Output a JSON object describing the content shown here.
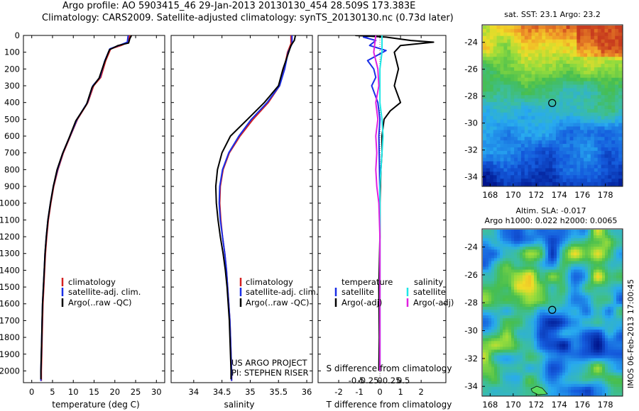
{
  "header": {
    "line1": "Argo profile: AO 5903415_46 29-Jan-2013 20130130_454 28.509S 173.383E",
    "line2": "Climatology: CARS2009. Satellite-adjusted climatology: synTS_20130130.nc (0.73d later)"
  },
  "side_text": "IMOS 06-Feb-2013 17:00:45",
  "colors": {
    "climatology": "#d42020",
    "satellite": "#1a2ee6",
    "argo": "#000000",
    "sal_satellite": "#1ee6e6",
    "sal_argo": "#e020e0"
  },
  "depth_axis": {
    "range": [
      0,
      2070
    ],
    "ticks": [
      "0",
      "100",
      "200",
      "300",
      "400",
      "500",
      "600",
      "700",
      "800",
      "900",
      "1000",
      "1100",
      "1200",
      "1300",
      "1400",
      "1500",
      "1600",
      "1700",
      "1800",
      "1900",
      "2000"
    ]
  },
  "chart_data": [
    {
      "type": "line",
      "xlabel": "temperature (deg C)",
      "xlim": [
        -2,
        32
      ],
      "xticks": [
        "0",
        "5",
        "10",
        "15",
        "20",
        "25",
        "30"
      ],
      "legend": [
        "climatology",
        "satellite-adj. clim.",
        "Argo(..raw -QC)"
      ],
      "series": [
        {
          "name": "climatology",
          "color_key": "climatology",
          "points": [
            [
              23.6,
              0
            ],
            [
              23.2,
              40
            ],
            [
              21.5,
              60
            ],
            [
              19.0,
              80
            ],
            [
              17.8,
              150
            ],
            [
              16.6,
              250
            ],
            [
              14.9,
              300
            ],
            [
              13.5,
              400
            ],
            [
              11.0,
              500
            ],
            [
              9.3,
              600
            ],
            [
              7.6,
              700
            ],
            [
              6.3,
              800
            ],
            [
              5.3,
              900
            ],
            [
              4.6,
              1000
            ],
            [
              4.0,
              1100
            ],
            [
              3.6,
              1200
            ],
            [
              3.3,
              1300
            ],
            [
              3.1,
              1400
            ],
            [
              2.9,
              1500
            ],
            [
              2.7,
              1600
            ],
            [
              2.6,
              1700
            ],
            [
              2.5,
              1800
            ],
            [
              2.4,
              1900
            ],
            [
              2.3,
              2000
            ],
            [
              2.3,
              2060
            ]
          ]
        },
        {
          "name": "satellite-adj. clim.",
          "color_key": "satellite",
          "points": [
            [
              23.2,
              0
            ],
            [
              23.0,
              40
            ],
            [
              21.0,
              60
            ],
            [
              18.8,
              80
            ],
            [
              17.6,
              150
            ],
            [
              16.4,
              250
            ],
            [
              14.7,
              300
            ],
            [
              13.4,
              400
            ],
            [
              10.9,
              500
            ],
            [
              9.2,
              600
            ],
            [
              7.5,
              700
            ],
            [
              6.2,
              800
            ],
            [
              5.2,
              900
            ],
            [
              4.5,
              1000
            ],
            [
              3.9,
              1100
            ],
            [
              3.5,
              1200
            ],
            [
              3.2,
              1300
            ],
            [
              3.0,
              1400
            ],
            [
              2.8,
              1500
            ],
            [
              2.6,
              1600
            ],
            [
              2.5,
              1700
            ],
            [
              2.4,
              1800
            ],
            [
              2.3,
              1900
            ],
            [
              2.2,
              2000
            ],
            [
              2.2,
              2060
            ]
          ]
        },
        {
          "name": "Argo(..raw -QC)",
          "color_key": "argo",
          "points": [
            [
              24.0,
              0
            ],
            [
              23.6,
              20
            ],
            [
              23.3,
              45
            ],
            [
              20.8,
              60
            ],
            [
              18.7,
              85
            ],
            [
              17.5,
              160
            ],
            [
              16.2,
              255
            ],
            [
              14.5,
              310
            ],
            [
              13.2,
              410
            ],
            [
              10.6,
              510
            ],
            [
              9.0,
              610
            ],
            [
              7.4,
              705
            ],
            [
              6.1,
              800
            ],
            [
              5.2,
              900
            ],
            [
              4.5,
              1000
            ],
            [
              3.9,
              1100
            ],
            [
              3.5,
              1200
            ],
            [
              3.2,
              1300
            ],
            [
              3.0,
              1400
            ],
            [
              2.8,
              1500
            ],
            [
              2.6,
              1600
            ],
            [
              2.5,
              1700
            ],
            [
              2.4,
              1800
            ],
            [
              2.3,
              1900
            ],
            [
              2.2,
              2000
            ],
            [
              2.2,
              2050
            ]
          ]
        }
      ]
    },
    {
      "type": "line",
      "xlabel": "salinity",
      "xlim": [
        33.6,
        36.1
      ],
      "xticks": [
        "34",
        "34.5",
        "35",
        "35.5",
        "36"
      ],
      "legend": [
        "climatology",
        "satellite-adj. clim.",
        "Argo(..raw -QC)"
      ],
      "series": [
        {
          "name": "climatology",
          "color_key": "climatology",
          "points": [
            [
              35.72,
              0
            ],
            [
              35.72,
              50
            ],
            [
              35.66,
              100
            ],
            [
              35.6,
              200
            ],
            [
              35.52,
              300
            ],
            [
              35.32,
              400
            ],
            [
              35.05,
              500
            ],
            [
              34.82,
              600
            ],
            [
              34.63,
              700
            ],
            [
              34.52,
              800
            ],
            [
              34.47,
              900
            ],
            [
              34.46,
              1000
            ],
            [
              34.48,
              1100
            ],
            [
              34.51,
              1200
            ],
            [
              34.55,
              1300
            ],
            [
              34.58,
              1400
            ],
            [
              34.6,
              1500
            ],
            [
              34.62,
              1600
            ],
            [
              34.64,
              1700
            ],
            [
              34.65,
              1800
            ],
            [
              34.66,
              1900
            ],
            [
              34.67,
              2000
            ],
            [
              34.67,
              2060
            ]
          ]
        },
        {
          "name": "satellite-adj. clim.",
          "color_key": "satellite",
          "points": [
            [
              35.74,
              0
            ],
            [
              35.74,
              50
            ],
            [
              35.67,
              100
            ],
            [
              35.61,
              200
            ],
            [
              35.52,
              300
            ],
            [
              35.3,
              400
            ],
            [
              35.02,
              500
            ],
            [
              34.8,
              600
            ],
            [
              34.62,
              700
            ],
            [
              34.51,
              800
            ],
            [
              34.46,
              900
            ],
            [
              34.45,
              1000
            ],
            [
              34.47,
              1100
            ],
            [
              34.51,
              1200
            ],
            [
              34.55,
              1300
            ],
            [
              34.58,
              1400
            ],
            [
              34.6,
              1500
            ],
            [
              34.62,
              1600
            ],
            [
              34.64,
              1700
            ],
            [
              34.65,
              1800
            ],
            [
              34.66,
              1900
            ],
            [
              34.67,
              2000
            ],
            [
              34.67,
              2060
            ]
          ]
        },
        {
          "name": "Argo(..raw -QC)",
          "color_key": "argo",
          "points": [
            [
              35.8,
              0
            ],
            [
              35.78,
              30
            ],
            [
              35.72,
              60
            ],
            [
              35.68,
              100
            ],
            [
              35.58,
              200
            ],
            [
              35.5,
              300
            ],
            [
              35.25,
              400
            ],
            [
              34.95,
              500
            ],
            [
              34.65,
              600
            ],
            [
              34.5,
              700
            ],
            [
              34.42,
              800
            ],
            [
              34.39,
              900
            ],
            [
              34.4,
              1000
            ],
            [
              34.43,
              1100
            ],
            [
              34.47,
              1200
            ],
            [
              34.52,
              1300
            ],
            [
              34.56,
              1400
            ],
            [
              34.59,
              1500
            ],
            [
              34.61,
              1600
            ],
            [
              34.63,
              1700
            ],
            [
              34.64,
              1800
            ],
            [
              34.65,
              1900
            ],
            [
              34.66,
              2000
            ],
            [
              34.66,
              2050
            ]
          ]
        }
      ]
    },
    {
      "type": "line",
      "xlabel": "T difference from climatology",
      "xlabel_top": "S difference from climatology",
      "xlim": [
        -3,
        3.2
      ],
      "xticks": [
        "-2",
        "-1",
        "0",
        "1",
        "2"
      ],
      "xticks_top": [
        "-0.5",
        "-0.25",
        "0",
        "0.25",
        "0.5"
      ],
      "legend_temperature_title": "temperature",
      "legend_salinity_title": "salinity",
      "legend_temperature": [
        "satellite",
        "Argo(-adj)"
      ],
      "legend_salinity": [
        "satellite",
        "Argo(-adj)"
      ],
      "series": [
        {
          "name": "satellite",
          "color_key": "satellite",
          "points": [
            [
              -0.3,
              0
            ],
            [
              -0.8,
              10
            ],
            [
              -0.2,
              30
            ],
            [
              -0.5,
              60
            ],
            [
              0.3,
              90
            ],
            [
              -0.6,
              150
            ],
            [
              -0.3,
              200
            ],
            [
              -0.2,
              250
            ],
            [
              -0.4,
              300
            ],
            [
              -0.1,
              400
            ],
            [
              0.0,
              500
            ],
            [
              -0.05,
              600
            ],
            [
              -0.02,
              800
            ],
            [
              0.0,
              1000
            ],
            [
              0.0,
              1500
            ],
            [
              0.0,
              2000
            ]
          ]
        },
        {
          "name": "Argo(-adj)",
          "color_key": "argo",
          "points": [
            [
              -1.2,
              0
            ],
            [
              0.3,
              10
            ],
            [
              1.5,
              30
            ],
            [
              2.6,
              40
            ],
            [
              1.0,
              60
            ],
            [
              0.7,
              100
            ],
            [
              0.9,
              200
            ],
            [
              0.7,
              300
            ],
            [
              1.0,
              400
            ],
            [
              0.5,
              450
            ],
            [
              0.2,
              500
            ],
            [
              0.1,
              600
            ],
            [
              0.1,
              700
            ],
            [
              0.05,
              800
            ],
            [
              0.0,
              1000
            ],
            [
              0.0,
              1200
            ],
            [
              -0.05,
              1500
            ],
            [
              -0.03,
              1800
            ],
            [
              -0.05,
              2000
            ]
          ]
        },
        {
          "name": "satellite",
          "color_key": "sal_satellite",
          "points": [
            [
              0.1,
              0
            ],
            [
              0.1,
              100
            ],
            [
              0.0,
              200
            ],
            [
              0.0,
              400
            ],
            [
              0.1,
              500
            ],
            [
              0.15,
              600
            ],
            [
              0.1,
              700
            ],
            [
              0.05,
              800
            ],
            [
              0.0,
              900
            ],
            [
              0.0,
              1000
            ],
            [
              0.0,
              1500
            ],
            [
              0.0,
              2000
            ]
          ]
        },
        {
          "name": "Argo(-adj)",
          "color_key": "sal_argo",
          "points": [
            [
              -0.2,
              0
            ],
            [
              -0.3,
              100
            ],
            [
              -0.1,
              200
            ],
            [
              -0.05,
              300
            ],
            [
              -0.2,
              400
            ],
            [
              -0.1,
              500
            ],
            [
              -0.2,
              600
            ],
            [
              -0.15,
              700
            ],
            [
              -0.2,
              800
            ],
            [
              -0.15,
              900
            ],
            [
              -0.05,
              1000
            ],
            [
              0.0,
              1200
            ],
            [
              0.0,
              1500
            ],
            [
              0.0,
              2000
            ]
          ]
        }
      ]
    },
    {
      "type": "heatmap",
      "title": "sat. SST: 23.1  Argo: 23.2",
      "xlim": [
        167.3,
        179.5
      ],
      "ylim": [
        -34.7,
        -22.7
      ],
      "xticks": [
        "168",
        "170",
        "172",
        "174",
        "176",
        "178"
      ],
      "yticks": [
        "-24",
        "-26",
        "-28",
        "-30",
        "-32",
        "-34"
      ],
      "argo_marker": [
        173.383,
        -28.509
      ]
    },
    {
      "type": "heatmap",
      "title_line1": "Altim. SLA: -0.017",
      "title_line2": "Argo h1000: 0.022 h2000: 0.0065",
      "xlim": [
        167.3,
        179.5
      ],
      "ylim": [
        -34.7,
        -22.7
      ],
      "xticks": [
        "168",
        "170",
        "172",
        "174",
        "176",
        "178"
      ],
      "yticks": [
        "-24",
        "-26",
        "-28",
        "-30",
        "-32",
        "-34"
      ],
      "argo_marker": [
        173.383,
        -28.509
      ]
    }
  ],
  "annotations": {
    "project_line1": "US ARGO PROJECT",
    "project_line2": "PI: STEPHEN RISER"
  }
}
